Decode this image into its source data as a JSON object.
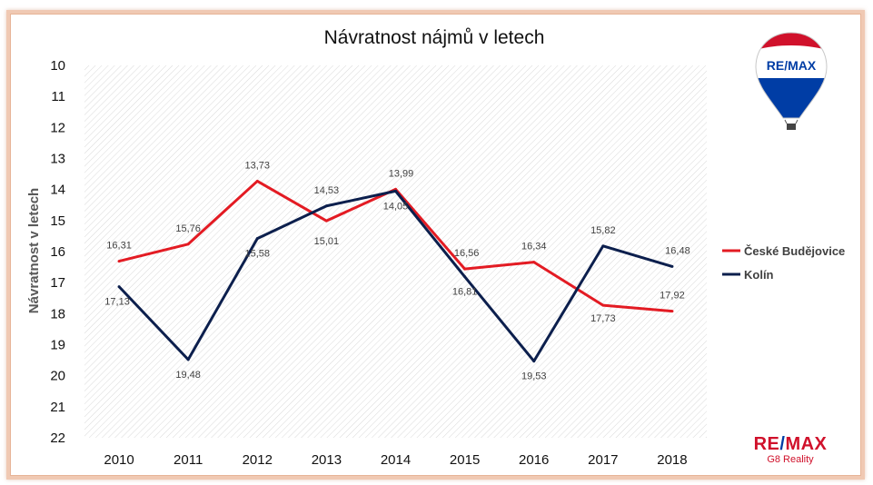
{
  "colors": {
    "series_cb": "#e31b23",
    "series_kolin": "#0c1f4d",
    "brand_red": "#d0112b",
    "brand_blue": "#003da5",
    "frame": "#f0c9b3"
  },
  "chart_data": {
    "type": "line",
    "title": "Návratnost nájmů v letech",
    "xlabel": "",
    "ylabel": "Návratnost v letech",
    "categories": [
      "2010",
      "2011",
      "2012",
      "2013",
      "2014",
      "2015",
      "2016",
      "2017",
      "2018"
    ],
    "y_ticks": [
      "10",
      "11",
      "12",
      "13",
      "14",
      "15",
      "16",
      "17",
      "18",
      "19",
      "20",
      "21",
      "22"
    ],
    "ylim": [
      10,
      22
    ],
    "y_inverted": true,
    "grid": "hatched plot background",
    "legend_position": "right",
    "series": [
      {
        "name": "České Budějovice",
        "values": [
          16.31,
          15.76,
          13.73,
          15.01,
          13.99,
          16.56,
          16.34,
          17.73,
          17.92
        ],
        "labels": [
          "16,31",
          "15,76",
          "13,73",
          "15,01",
          "13,99",
          "16,56",
          "16,34",
          "17,73",
          "17,92"
        ]
      },
      {
        "name": "Kolín",
        "values": [
          17.13,
          19.48,
          15.58,
          14.53,
          14.05,
          16.81,
          19.53,
          15.82,
          16.48
        ],
        "labels": [
          "17,13",
          "19,48",
          "15,58",
          "14,53",
          "14,05",
          "16,81",
          "19,53",
          "15,82",
          "16,48"
        ]
      }
    ]
  },
  "logo": {
    "balloon_text": "RE/MAX",
    "brand_left": "RE",
    "brand_slash": "/",
    "brand_right": "MAX",
    "sub": "G8 Reality"
  }
}
